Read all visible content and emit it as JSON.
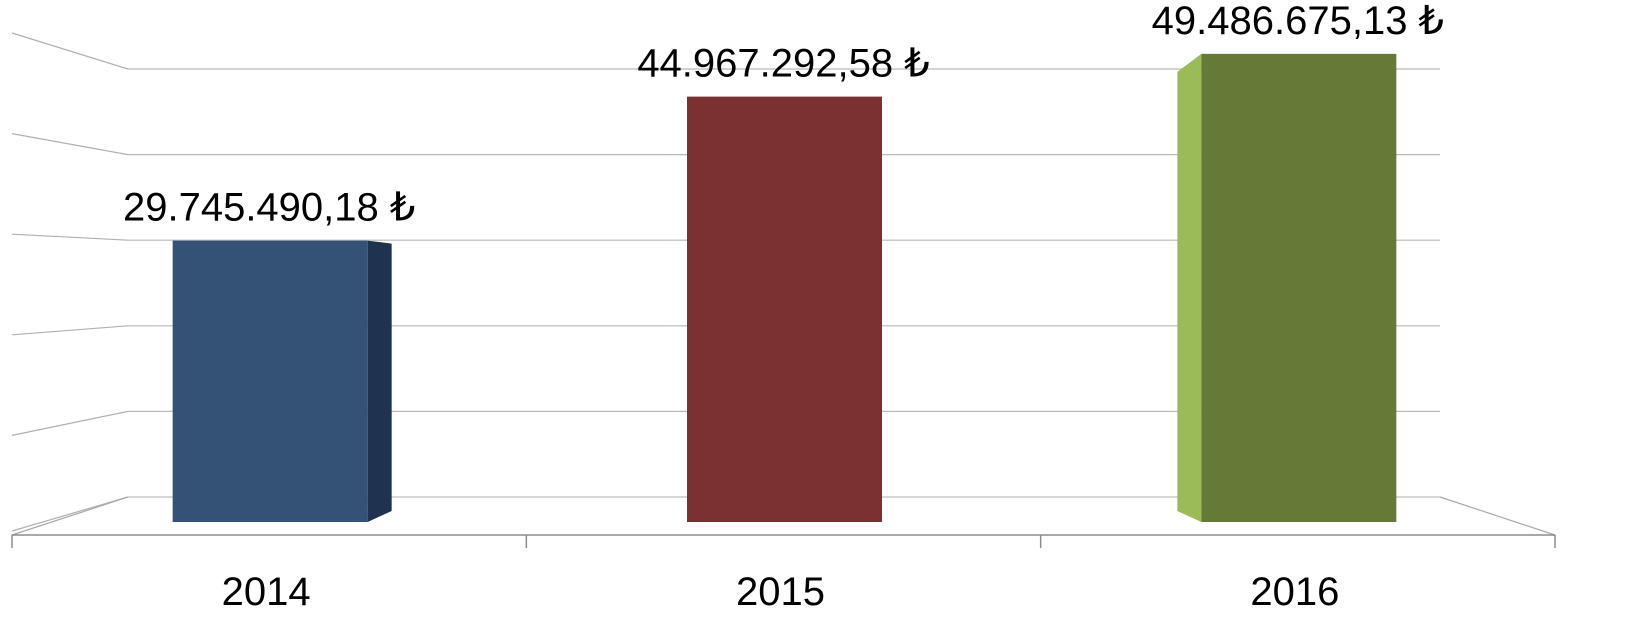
{
  "chart_data": {
    "type": "bar",
    "style": "3d-column",
    "categories": [
      "2014",
      "2015",
      "2016"
    ],
    "values": [
      29745490.18,
      44967292.58,
      49486675.13
    ],
    "data_labels": [
      "29.745.490,18 ₺",
      "44.967.292,58 ₺",
      "49.486.675,13 ₺"
    ],
    "colors": [
      {
        "front": "#335275",
        "side": "#1f334e"
      },
      {
        "front": "#7b3032",
        "side": "#5a2224"
      },
      {
        "front": "#667a37",
        "side": "#9bbb59"
      }
    ],
    "ylim": [
      0,
      50000000
    ],
    "grid": true,
    "title": "",
    "xlabel": "",
    "ylabel": ""
  }
}
